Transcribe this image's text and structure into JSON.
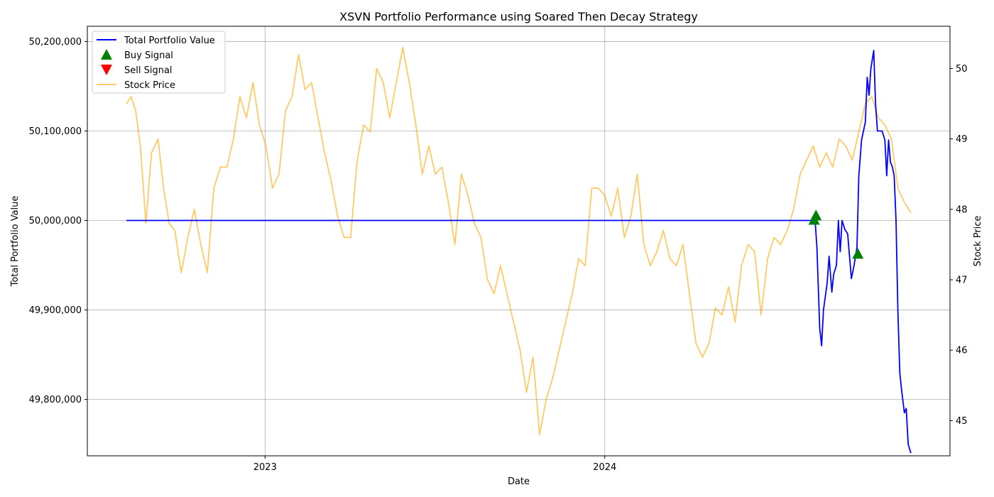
{
  "chart_data": {
    "type": "line",
    "title": "XSVN Portfolio Performance using Soared Then Decay Strategy",
    "xlabel": "Date",
    "ylabel_left": "Total Portfolio Value",
    "ylabel_right": "Stock Price",
    "x_ticks": [
      "2023",
      "2024"
    ],
    "y_left_ticks": [
      "49,800,000",
      "49,900,000",
      "50,000,000",
      "50,100,000",
      "50,200,000"
    ],
    "y_right_ticks": [
      "45",
      "46",
      "47",
      "48",
      "49",
      "50"
    ],
    "ylim_left": [
      49737000,
      50217000
    ],
    "ylim_right": [
      44.5,
      50.6
    ],
    "grid": true,
    "legend_position": "top-left",
    "colors": {
      "portfolio": "#0000ff",
      "buy": "#008000",
      "sell": "#ff0000",
      "price": "#ffa500"
    },
    "legend": [
      {
        "label": "Total Portfolio Value",
        "kind": "line",
        "color": "#0000ff"
      },
      {
        "label": "Buy Signal",
        "kind": "up-triangle",
        "color": "#008000"
      },
      {
        "label": "Sell Signal",
        "kind": "down-triangle",
        "color": "#ff0000"
      },
      {
        "label": "Stock Price",
        "kind": "line",
        "color": "#ffa500"
      }
    ],
    "series": [
      {
        "name": "Total Portfolio Value",
        "axis": "left",
        "points": [
          [
            "2022-08-05",
            50000000
          ],
          [
            "2024-08-14",
            50000000
          ],
          [
            "2024-08-16",
            49970000
          ],
          [
            "2024-08-19",
            49880000
          ],
          [
            "2024-08-21",
            49860000
          ],
          [
            "2024-08-23",
            49900000
          ],
          [
            "2024-08-27",
            49930000
          ],
          [
            "2024-08-29",
            49960000
          ],
          [
            "2024-09-01",
            49920000
          ],
          [
            "2024-09-03",
            49940000
          ],
          [
            "2024-09-06",
            49950000
          ],
          [
            "2024-09-08",
            50000000
          ],
          [
            "2024-09-10",
            49965000
          ],
          [
            "2024-09-12",
            50000000
          ],
          [
            "2024-09-15",
            49990000
          ],
          [
            "2024-09-18",
            49985000
          ],
          [
            "2024-09-20",
            49960000
          ],
          [
            "2024-09-22",
            49935000
          ],
          [
            "2024-09-25",
            49950000
          ],
          [
            "2024-09-28",
            49970000
          ],
          [
            "2024-09-30",
            50050000
          ],
          [
            "2024-10-03",
            50090000
          ],
          [
            "2024-10-07",
            50110000
          ],
          [
            "2024-10-09",
            50160000
          ],
          [
            "2024-10-11",
            50140000
          ],
          [
            "2024-10-13",
            50170000
          ],
          [
            "2024-10-16",
            50190000
          ],
          [
            "2024-10-18",
            50130000
          ],
          [
            "2024-10-20",
            50100000
          ],
          [
            "2024-10-25",
            50100000
          ],
          [
            "2024-10-28",
            50090000
          ],
          [
            "2024-10-30",
            50050000
          ],
          [
            "2024-11-01",
            50090000
          ],
          [
            "2024-11-03",
            50065000
          ],
          [
            "2024-11-05",
            50060000
          ],
          [
            "2024-11-07",
            50050000
          ],
          [
            "2024-11-09",
            50000000
          ],
          [
            "2024-11-11",
            49900000
          ],
          [
            "2024-11-13",
            49830000
          ],
          [
            "2024-11-15",
            49810000
          ],
          [
            "2024-11-18",
            49785000
          ],
          [
            "2024-11-20",
            49790000
          ],
          [
            "2024-11-22",
            49750000
          ],
          [
            "2024-11-25",
            49740000
          ]
        ]
      },
      {
        "name": "Stock Price",
        "axis": "right",
        "points": [
          [
            "2022-08-05",
            49.5
          ],
          [
            "2022-08-10",
            49.6
          ],
          [
            "2022-08-15",
            49.4
          ],
          [
            "2022-08-20",
            48.9
          ],
          [
            "2022-08-26",
            47.8
          ],
          [
            "2022-09-01",
            48.8
          ],
          [
            "2022-09-08",
            49.0
          ],
          [
            "2022-09-14",
            48.3
          ],
          [
            "2022-09-20",
            47.8
          ],
          [
            "2022-09-26",
            47.7
          ],
          [
            "2022-10-03",
            47.1
          ],
          [
            "2022-10-10",
            47.6
          ],
          [
            "2022-10-17",
            48.0
          ],
          [
            "2022-10-24",
            47.5
          ],
          [
            "2022-10-31",
            47.1
          ],
          [
            "2022-11-07",
            48.3
          ],
          [
            "2022-11-14",
            48.6
          ],
          [
            "2022-11-21",
            48.6
          ],
          [
            "2022-11-28",
            49.0
          ],
          [
            "2022-12-05",
            49.6
          ],
          [
            "2022-12-12",
            49.3
          ],
          [
            "2022-12-19",
            49.8
          ],
          [
            "2022-12-26",
            49.2
          ],
          [
            "2023-01-02",
            48.9
          ],
          [
            "2023-01-09",
            48.3
          ],
          [
            "2023-01-16",
            48.5
          ],
          [
            "2023-01-23",
            49.4
          ],
          [
            "2023-01-30",
            49.6
          ],
          [
            "2023-02-06",
            50.2
          ],
          [
            "2023-02-13",
            49.7
          ],
          [
            "2023-02-20",
            49.8
          ],
          [
            "2023-02-27",
            49.3
          ],
          [
            "2023-03-06",
            48.8
          ],
          [
            "2023-03-13",
            48.4
          ],
          [
            "2023-03-20",
            47.9
          ],
          [
            "2023-03-27",
            47.6
          ],
          [
            "2023-04-03",
            47.6
          ],
          [
            "2023-04-10",
            48.7
          ],
          [
            "2023-04-17",
            49.2
          ],
          [
            "2023-04-24",
            49.1
          ],
          [
            "2023-05-01",
            50.0
          ],
          [
            "2023-05-08",
            49.8
          ],
          [
            "2023-05-15",
            49.3
          ],
          [
            "2023-05-22",
            49.8
          ],
          [
            "2023-05-29",
            50.3
          ],
          [
            "2023-06-05",
            49.8
          ],
          [
            "2023-06-12",
            49.2
          ],
          [
            "2023-06-19",
            48.5
          ],
          [
            "2023-06-26",
            48.9
          ],
          [
            "2023-07-03",
            48.5
          ],
          [
            "2023-07-10",
            48.6
          ],
          [
            "2023-07-17",
            48.1
          ],
          [
            "2023-07-24",
            47.5
          ],
          [
            "2023-07-31",
            48.5
          ],
          [
            "2023-08-07",
            48.2
          ],
          [
            "2023-08-14",
            47.8
          ],
          [
            "2023-08-21",
            47.6
          ],
          [
            "2023-08-28",
            47.0
          ],
          [
            "2023-09-04",
            46.8
          ],
          [
            "2023-09-11",
            47.2
          ],
          [
            "2023-09-18",
            46.8
          ],
          [
            "2023-09-25",
            46.4
          ],
          [
            "2023-10-02",
            46.0
          ],
          [
            "2023-10-09",
            45.4
          ],
          [
            "2023-10-16",
            45.9
          ],
          [
            "2023-10-23",
            44.8
          ],
          [
            "2023-10-30",
            45.3
          ],
          [
            "2023-11-06",
            45.6
          ],
          [
            "2023-11-13",
            46.0
          ],
          [
            "2023-11-20",
            46.4
          ],
          [
            "2023-11-27",
            46.8
          ],
          [
            "2023-12-04",
            47.3
          ],
          [
            "2023-12-11",
            47.2
          ],
          [
            "2023-12-18",
            48.3
          ],
          [
            "2023-12-25",
            48.3
          ],
          [
            "2024-01-01",
            48.2
          ],
          [
            "2024-01-08",
            47.9
          ],
          [
            "2024-01-15",
            48.3
          ],
          [
            "2024-01-22",
            47.6
          ],
          [
            "2024-01-29",
            47.9
          ],
          [
            "2024-02-05",
            48.5
          ],
          [
            "2024-02-12",
            47.5
          ],
          [
            "2024-02-19",
            47.2
          ],
          [
            "2024-02-26",
            47.4
          ],
          [
            "2024-03-04",
            47.7
          ],
          [
            "2024-03-11",
            47.3
          ],
          [
            "2024-03-18",
            47.2
          ],
          [
            "2024-03-25",
            47.5
          ],
          [
            "2024-04-01",
            46.8
          ],
          [
            "2024-04-08",
            46.1
          ],
          [
            "2024-04-15",
            45.9
          ],
          [
            "2024-04-22",
            46.1
          ],
          [
            "2024-04-29",
            46.6
          ],
          [
            "2024-05-06",
            46.5
          ],
          [
            "2024-05-13",
            46.9
          ],
          [
            "2024-05-20",
            46.4
          ],
          [
            "2024-05-27",
            47.2
          ],
          [
            "2024-06-03",
            47.5
          ],
          [
            "2024-06-10",
            47.4
          ],
          [
            "2024-06-17",
            46.5
          ],
          [
            "2024-06-24",
            47.3
          ],
          [
            "2024-07-01",
            47.6
          ],
          [
            "2024-07-08",
            47.5
          ],
          [
            "2024-07-15",
            47.7
          ],
          [
            "2024-07-22",
            48.0
          ],
          [
            "2024-07-29",
            48.5
          ],
          [
            "2024-08-05",
            48.7
          ],
          [
            "2024-08-12",
            48.9
          ],
          [
            "2024-08-19",
            48.6
          ],
          [
            "2024-08-26",
            48.8
          ],
          [
            "2024-09-02",
            48.6
          ],
          [
            "2024-09-09",
            49.0
          ],
          [
            "2024-09-16",
            48.9
          ],
          [
            "2024-09-23",
            48.7
          ],
          [
            "2024-09-30",
            49.1
          ],
          [
            "2024-10-07",
            49.5
          ],
          [
            "2024-10-14",
            49.6
          ],
          [
            "2024-10-21",
            49.3
          ],
          [
            "2024-10-28",
            49.2
          ],
          [
            "2024-11-04",
            49.0
          ],
          [
            "2024-11-11",
            48.3
          ],
          [
            "2024-11-18",
            48.1
          ],
          [
            "2024-11-25",
            47.95
          ]
        ]
      }
    ],
    "buy_signals": [
      [
        "2024-08-13",
        50000000
      ],
      [
        "2024-08-15",
        50005000
      ],
      [
        "2024-09-29",
        49962000
      ]
    ],
    "sell_signals": []
  }
}
